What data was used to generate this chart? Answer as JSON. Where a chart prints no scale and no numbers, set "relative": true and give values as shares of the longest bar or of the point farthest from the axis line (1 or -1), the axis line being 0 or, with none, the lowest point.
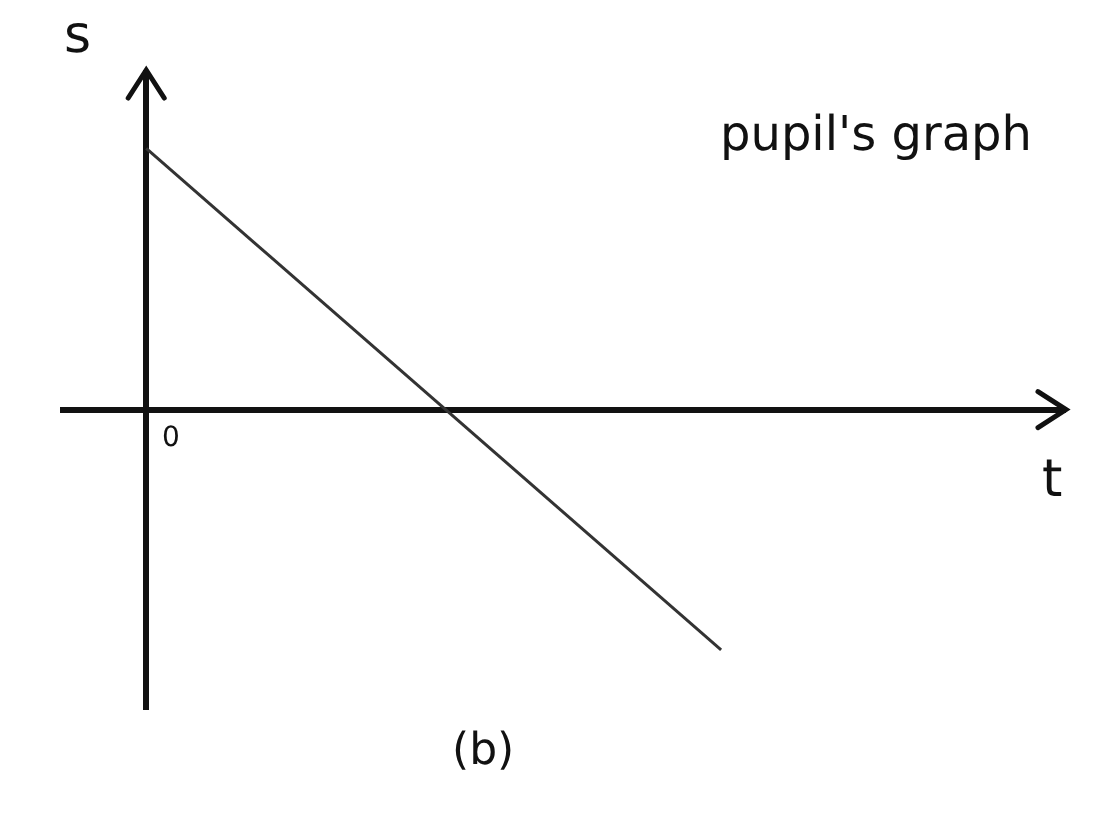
{
  "chart_data": {
    "type": "line",
    "relative": true,
    "categories": [
      null,
      null
    ],
    "values": [
      1,
      -0.92
    ],
    "color": "#333333",
    "xlabel": "t",
    "ylabel": "s",
    "annotations": [
      "pupil's graph",
      "0",
      "(b)"
    ],
    "marker": "none",
    "line_style": "solid"
  }
}
